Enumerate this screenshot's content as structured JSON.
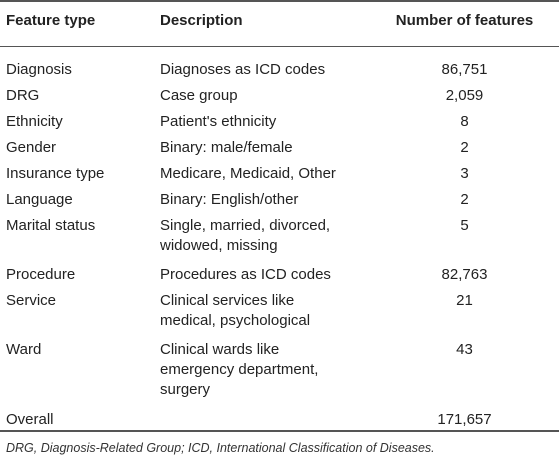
{
  "headers": {
    "feature_type": "Feature type",
    "description": "Description",
    "num_features": "Number of features"
  },
  "rows": [
    {
      "type": "Diagnosis",
      "desc": [
        "Diagnoses as ICD codes"
      ],
      "count": "86,751"
    },
    {
      "type": "DRG",
      "desc": [
        "Case group"
      ],
      "count": "2,059"
    },
    {
      "type": "Ethnicity",
      "desc": [
        "Patient's ethnicity"
      ],
      "count": "8"
    },
    {
      "type": "Gender",
      "desc": [
        "Binary: male/female"
      ],
      "count": "2"
    },
    {
      "type": "Insurance type",
      "desc": [
        "Medicare, Medicaid, Other"
      ],
      "count": "3"
    },
    {
      "type": "Language",
      "desc": [
        "Binary: English/other"
      ],
      "count": "2"
    },
    {
      "type": "Marital status",
      "desc": [
        "Single, married, divorced,",
        "widowed, missing"
      ],
      "count": "5"
    },
    {
      "type": "Procedure",
      "desc": [
        "Procedures as ICD codes"
      ],
      "count": "82,763"
    },
    {
      "type": "Service",
      "desc": [
        "Clinical services like",
        "medical, psychological"
      ],
      "count": "21"
    },
    {
      "type": "Ward",
      "desc": [
        "Clinical wards like",
        "emergency department,",
        "surgery"
      ],
      "count": "43"
    },
    {
      "type": "Overall",
      "desc": [
        ""
      ],
      "count": "171,657"
    }
  ],
  "footnote": "DRG, Diagnosis-Related Group; ICD, International Classification of Diseases."
}
